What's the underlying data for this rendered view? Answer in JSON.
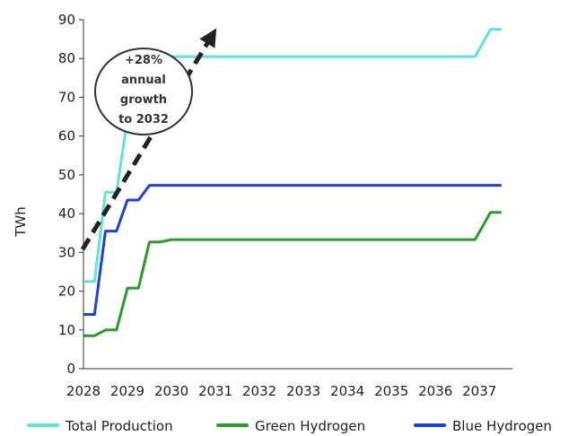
{
  "chart_data": {
    "type": "line",
    "x": [
      2028,
      2029,
      2030,
      2031,
      2032,
      2033,
      2034,
      2035,
      2036,
      2037
    ],
    "x_tick_labels": [
      "2028",
      "2029",
      "2030",
      "2031",
      "2032",
      "2033",
      "2034",
      "2035",
      "2036",
      "2037"
    ],
    "ylabel": "TWh",
    "ylim": [
      0,
      90
    ],
    "y_ticks": [
      0,
      10,
      20,
      30,
      40,
      50,
      60,
      70,
      80,
      90
    ],
    "grid": false,
    "legend_position": "bottom",
    "series": [
      {
        "name": "Total Production",
        "color": "#5fe3d6",
        "x": [
          2028,
          2028.25,
          2028.5,
          2028.75,
          2029,
          2029.25,
          2029.5,
          2029.75,
          2030,
          2030.25,
          2030.5,
          2030.75,
          2031,
          2031.25,
          2031.5,
          2031.75,
          2032,
          2036.9,
          2037.25,
          2037.5
        ],
        "values": [
          22.5,
          22.5,
          45.5,
          45.5,
          64.5,
          64.5,
          80,
          80,
          80.5,
          80.5,
          80.5,
          80.5,
          80.5,
          80.5,
          80.5,
          80.5,
          80.5,
          80.5,
          87.5,
          87.5
        ]
      },
      {
        "name": "Green Hydrogen",
        "color": "#2a9a2a",
        "x": [
          2028,
          2028.25,
          2028.5,
          2028.75,
          2029,
          2029.25,
          2029.5,
          2029.75,
          2030,
          2030.25,
          2030.5,
          2030.75,
          2031,
          2031.25,
          2031.5,
          2031.75,
          2032,
          2036.9,
          2037.25,
          2037.5
        ],
        "values": [
          8.5,
          8.5,
          10,
          10,
          20.8,
          20.8,
          32.7,
          32.7,
          33.3,
          33.3,
          33.3,
          33.3,
          33.3,
          33.3,
          33.3,
          33.3,
          33.3,
          33.3,
          40.3,
          40.3
        ]
      },
      {
        "name": "Blue Hydrogen",
        "color": "#1f3fdc",
        "x": [
          2028,
          2028.25,
          2028.5,
          2028.75,
          2029,
          2029.25,
          2029.5,
          2029.75,
          2030,
          2030.25,
          2030.5,
          2030.75,
          2031,
          2031.25,
          2031.5,
          2031.75,
          2032,
          2036.9,
          2037.25,
          2037.5
        ],
        "values": [
          14,
          14,
          35.5,
          35.5,
          43.5,
          43.5,
          47.3,
          47.3,
          47.3,
          47.3,
          47.3,
          47.3,
          47.3,
          47.3,
          47.3,
          47.3,
          47.3,
          47.3,
          47.3,
          47.3
        ]
      }
    ],
    "annotation": {
      "lines": [
        "+28%",
        "annual",
        "growth",
        "to 2032"
      ]
    }
  }
}
